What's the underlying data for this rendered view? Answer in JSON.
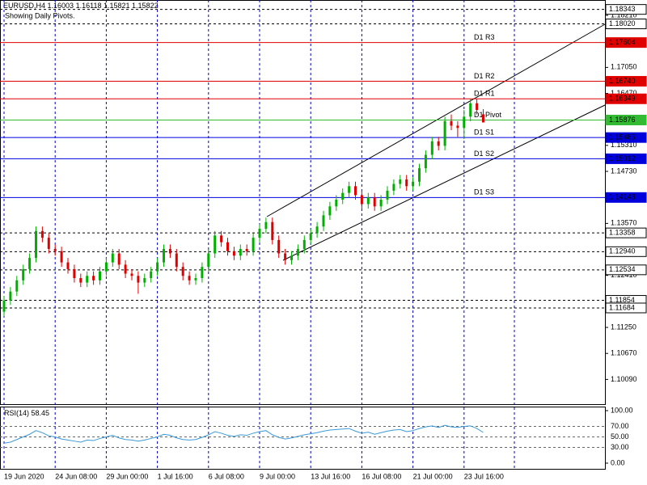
{
  "chart_data": [
    {
      "type": "candlestick",
      "title": "EURUSD,H4",
      "subtitle": "Showing Daily Pivots.",
      "categories": [
        "19 Jun 2020",
        null,
        null,
        null,
        null,
        null,
        null,
        null,
        "24 Jun 08:00",
        null,
        null,
        null,
        null,
        null,
        null,
        null,
        "29 Jun 00:00",
        null,
        null,
        null,
        null,
        null,
        null,
        null,
        "1 Jul 16:00",
        null,
        null,
        null,
        null,
        null,
        null,
        null,
        "6 Jul 08:00",
        null,
        null,
        null,
        null,
        null,
        null,
        null,
        "9 Jul 00:00",
        null,
        null,
        null,
        null,
        null,
        null,
        null,
        "13 Jul 16:00",
        null,
        null,
        null,
        null,
        null,
        null,
        null,
        "16 Jul 08:00",
        null,
        null,
        null,
        null,
        null,
        null,
        null,
        "21 Jul 00:00",
        null,
        null,
        null,
        null,
        null,
        null,
        null,
        "23 Jul 16:00",
        null,
        null,
        null
      ],
      "open": [
        1.116,
        1.1185,
        1.1205,
        1.123,
        1.1255,
        1.128,
        1.134,
        1.1325,
        1.13,
        1.1295,
        1.127,
        1.1255,
        1.1235,
        1.1225,
        1.124,
        1.123,
        1.125,
        1.127,
        1.129,
        1.1265,
        1.1245,
        1.124,
        1.1225,
        1.1235,
        1.125,
        1.127,
        1.13,
        1.129,
        1.126,
        1.124,
        1.123,
        1.1235,
        1.126,
        1.129,
        1.133,
        1.1315,
        1.1295,
        1.1285,
        1.13,
        1.1295,
        1.1325,
        1.1345,
        1.136,
        1.132,
        1.129,
        1.1275,
        1.1285,
        1.13,
        1.132,
        1.1335,
        1.135,
        1.1375,
        1.1395,
        1.141,
        1.1425,
        1.144,
        1.142,
        1.14,
        1.1415,
        1.1395,
        1.141,
        1.143,
        1.1445,
        1.1455,
        1.144,
        1.145,
        1.148,
        1.151,
        1.154,
        1.153,
        1.1585,
        1.1575,
        1.157,
        1.1595,
        1.1625,
        1.16003
      ],
      "high": [
        1.1195,
        1.1215,
        1.124,
        1.1265,
        1.129,
        1.135,
        1.135,
        1.1335,
        1.131,
        1.1305,
        1.128,
        1.1265,
        1.1245,
        1.125,
        1.125,
        1.126,
        1.128,
        1.13,
        1.13,
        1.1275,
        1.1255,
        1.125,
        1.1245,
        1.126,
        1.128,
        1.131,
        1.131,
        1.13,
        1.127,
        1.125,
        1.1245,
        1.127,
        1.13,
        1.134,
        1.134,
        1.1325,
        1.1305,
        1.131,
        1.131,
        1.1335,
        1.1355,
        1.137,
        1.137,
        1.133,
        1.13,
        1.1295,
        1.131,
        1.133,
        1.1345,
        1.136,
        1.1385,
        1.1405,
        1.142,
        1.1435,
        1.145,
        1.145,
        1.143,
        1.1425,
        1.1425,
        1.142,
        1.144,
        1.1455,
        1.1465,
        1.1465,
        1.146,
        1.149,
        1.152,
        1.155,
        1.155,
        1.1595,
        1.16,
        1.1585,
        1.161,
        1.1635,
        1.1635,
        1.16118
      ],
      "low": [
        1.115,
        1.1175,
        1.1195,
        1.122,
        1.1245,
        1.127,
        1.1315,
        1.129,
        1.1285,
        1.126,
        1.1245,
        1.1225,
        1.1215,
        1.1215,
        1.122,
        1.122,
        1.124,
        1.126,
        1.1255,
        1.1235,
        1.123,
        1.12,
        1.1215,
        1.1225,
        1.124,
        1.126,
        1.128,
        1.125,
        1.123,
        1.122,
        1.122,
        1.1225,
        1.125,
        1.128,
        1.1305,
        1.1285,
        1.1275,
        1.1275,
        1.1285,
        1.1285,
        1.1315,
        1.1335,
        1.131,
        1.128,
        1.1265,
        1.1265,
        1.1275,
        1.129,
        1.131,
        1.1325,
        1.134,
        1.1365,
        1.1385,
        1.14,
        1.1415,
        1.141,
        1.139,
        1.139,
        1.1385,
        1.1385,
        1.14,
        1.142,
        1.1435,
        1.143,
        1.143,
        1.144,
        1.147,
        1.15,
        1.152,
        1.152,
        1.1565,
        1.155,
        1.1545,
        1.1585,
        1.16,
        1.15821
      ],
      "close": [
        1.1185,
        1.1205,
        1.123,
        1.1255,
        1.128,
        1.134,
        1.1325,
        1.13,
        1.1295,
        1.127,
        1.1255,
        1.1235,
        1.1225,
        1.124,
        1.123,
        1.125,
        1.127,
        1.129,
        1.1265,
        1.1245,
        1.124,
        1.1225,
        1.1235,
        1.125,
        1.127,
        1.13,
        1.129,
        1.126,
        1.124,
        1.123,
        1.1235,
        1.126,
        1.129,
        1.133,
        1.1315,
        1.1295,
        1.1285,
        1.13,
        1.1295,
        1.1325,
        1.1345,
        1.136,
        1.132,
        1.129,
        1.1275,
        1.1285,
        1.13,
        1.132,
        1.1335,
        1.135,
        1.1375,
        1.1395,
        1.141,
        1.1425,
        1.144,
        1.142,
        1.14,
        1.1415,
        1.1395,
        1.141,
        1.143,
        1.1445,
        1.1455,
        1.144,
        1.145,
        1.148,
        1.151,
        1.154,
        1.153,
        1.1585,
        1.1575,
        1.157,
        1.1595,
        1.1625,
        1.161,
        1.15822
      ],
      "up_color": "#00b000",
      "down_color": "#e00000",
      "ylim": [
        1.09538,
        1.18553
      ],
      "yticks": [
        {
          "value": 1.1821,
          "label": "1.18210"
        },
        {
          "value": 1.1705,
          "label": "1.17050"
        },
        {
          "value": 1.1647,
          "label": "1.16470"
        },
        {
          "value": 1.1531,
          "label": "1.15310"
        },
        {
          "value": 1.1473,
          "label": "1.14730"
        },
        {
          "value": 1.1357,
          "label": "1.13570"
        },
        {
          "value": 1.1241,
          "label": "1.12410"
        },
        {
          "value": 1.1125,
          "label": "1.11250"
        },
        {
          "value": 1.1067,
          "label": "1.10670"
        },
        {
          "value": 1.1009,
          "label": "1.10090"
        }
      ],
      "grid": true,
      "levels": [
        {
          "value": 1.18343,
          "color": "#000000",
          "style": "dashed"
        },
        {
          "value": 1.1802,
          "label": "1.18020",
          "color": "#000000",
          "style": "dashed"
        },
        {
          "value": 1.17604,
          "name": "D1 R3",
          "color": "#e00000",
          "style": "solid"
        },
        {
          "value": 1.1674,
          "label": "1.16740",
          "name": "D1 R2",
          "color": "#e00000",
          "style": "solid"
        },
        {
          "value": 1.16349,
          "name": "D1 R1",
          "color": "#e00000",
          "style": "solid"
        },
        {
          "value": 1.15876,
          "name": "D1 Pivot",
          "color": "#33bb33",
          "style": "solid"
        },
        {
          "value": 1.15485,
          "name": "D1 S1",
          "color": "#0000dd",
          "style": "solid"
        },
        {
          "value": 1.15012,
          "name": "D1 S2",
          "color": "#0000dd",
          "style": "solid"
        },
        {
          "value": 1.14148,
          "name": "D1 S3",
          "color": "#0000dd",
          "style": "solid"
        },
        {
          "value": 1.13358,
          "color": "#000000",
          "style": "dashed"
        },
        {
          "value": 1.1294,
          "label": "1.12940",
          "color": "#000000",
          "style": "dashed"
        },
        {
          "value": 1.12534,
          "color": "#000000",
          "style": "dashed"
        },
        {
          "value": 1.11854,
          "color": "#000000",
          "style": "dashed"
        },
        {
          "value": 1.11684,
          "color": "#000000",
          "style": "dashed"
        }
      ]
    },
    {
      "type": "line",
      "title": "RSI(14)",
      "color": "#3a9ad9",
      "values": [
        38,
        40,
        45,
        50,
        55,
        62,
        58,
        52,
        50,
        46,
        44,
        42,
        40,
        44,
        43,
        47,
        50,
        53,
        48,
        45,
        44,
        42,
        44,
        47,
        50,
        55,
        53,
        48,
        45,
        44,
        45,
        49,
        54,
        60,
        57,
        53,
        51,
        54,
        53,
        57,
        60,
        62,
        54,
        49,
        46,
        48,
        51,
        54,
        56,
        58,
        61,
        63,
        64,
        65,
        66,
        61,
        57,
        59,
        55,
        58,
        61,
        63,
        64,
        60,
        62,
        66,
        69,
        71,
        68,
        72,
        69,
        68,
        70,
        71,
        66,
        58.45
      ],
      "ylim": [
        -10.8,
        107.7
      ],
      "yticks": [
        {
          "value": 100,
          "label": "100.00"
        },
        {
          "value": 70,
          "label": "70.00"
        },
        {
          "value": 50,
          "label": "50.00"
        },
        {
          "value": 30,
          "label": "30.00"
        },
        {
          "value": 0,
          "label": "0.00"
        }
      ]
    }
  ]
}
